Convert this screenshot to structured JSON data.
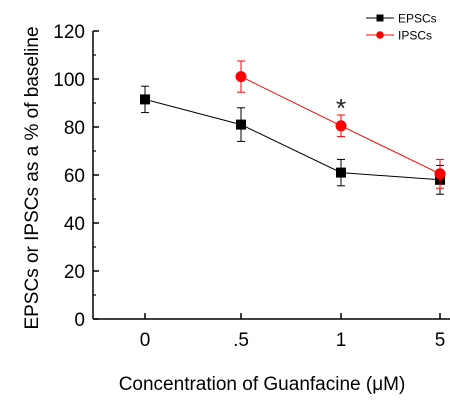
{
  "chart_data": {
    "type": "line",
    "categories": [
      "0",
      ".5",
      "1",
      "5"
    ],
    "xlabel": "Concentration of Guanfacine (μM)",
    "ylabel": "EPSCs or IPSCs as a % of baseline",
    "ylim": [
      0,
      120
    ],
    "yticks": [
      0,
      20,
      40,
      60,
      80,
      100,
      120
    ],
    "grid": false,
    "legend_position": "top-right",
    "series": [
      {
        "name": "EPSCs",
        "color": "#000000",
        "marker": "square",
        "values": [
          91.5,
          81,
          61,
          58
        ],
        "errors": [
          5.5,
          7,
          5.5,
          6
        ]
      },
      {
        "name": "IPSCs",
        "color": "#ff0000",
        "marker": "circle",
        "values": [
          null,
          101,
          80.5,
          60.5
        ],
        "errors": [
          null,
          6.5,
          4.5,
          6
        ]
      }
    ],
    "annotations": [
      {
        "text": "*",
        "category": "1",
        "y": 90
      }
    ]
  }
}
